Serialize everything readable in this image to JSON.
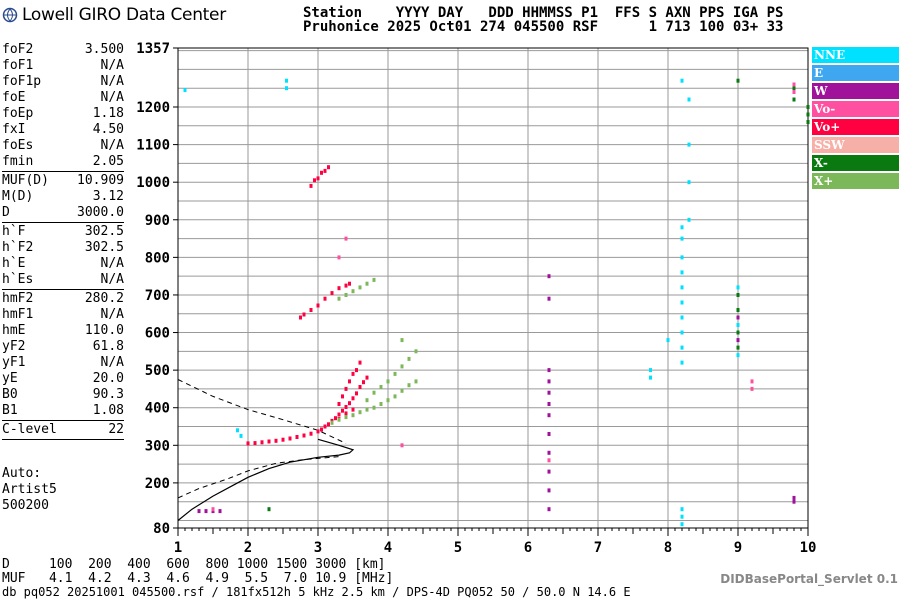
{
  "header": {
    "logo_text": "Lowell GIRO Data Center",
    "line1": "Station    YYYY DAY   DDD HHMMSS P1  FFS S AXN PPS IGA PS",
    "line2": "Pruhonice 2025 Oct01 274 045500 RSF      1 713 100 03+ 33"
  },
  "params": [
    {
      "k": "foF2",
      "v": "3.500"
    },
    {
      "k": "foF1",
      "v": "N/A"
    },
    {
      "k": "foF1p",
      "v": "N/A"
    },
    {
      "k": "foE",
      "v": "N/A"
    },
    {
      "k": "foEp",
      "v": "1.18"
    },
    {
      "k": "fxI",
      "v": "4.50"
    },
    {
      "k": "foEs",
      "v": "N/A"
    },
    {
      "k": "fmin",
      "v": "2.05"
    },
    {
      "sep": true
    },
    {
      "k": "MUF(D)",
      "v": "10.909"
    },
    {
      "k": "M(D)",
      "v": "3.12"
    },
    {
      "k": "D",
      "v": "3000.0"
    },
    {
      "sep": true
    },
    {
      "k": "h`F",
      "v": "302.5"
    },
    {
      "k": "h`F2",
      "v": "302.5"
    },
    {
      "k": "h`E",
      "v": "N/A"
    },
    {
      "k": "h`Es",
      "v": "N/A"
    },
    {
      "sep": true
    },
    {
      "k": "hmF2",
      "v": "280.2"
    },
    {
      "k": "hmF1",
      "v": "N/A"
    },
    {
      "k": "hmE",
      "v": "110.0"
    },
    {
      "k": "yF2",
      "v": "61.8"
    },
    {
      "k": "yF1",
      "v": "N/A"
    },
    {
      "k": "yE",
      "v": "20.0"
    },
    {
      "k": "B0",
      "v": "90.3"
    },
    {
      "k": "B1",
      "v": "1.08"
    },
    {
      "sep": true
    },
    {
      "k": "C-level",
      "v": "22"
    },
    {
      "sep": true
    }
  ],
  "auto": {
    "line1": "Auto:",
    "line2": "Artist5",
    "line3": "500200"
  },
  "legend": [
    {
      "label": "NNE",
      "color": "#00e0ff"
    },
    {
      "label": "E",
      "color": "#3fa6f0"
    },
    {
      "label": "W",
      "color": "#a0129a"
    },
    {
      "label": "Vo-",
      "color": "#ff4fa0"
    },
    {
      "label": "Vo+",
      "color": "#ff0040"
    },
    {
      "label": "SSW",
      "color": "#f7b0a8"
    },
    {
      "label": "X-",
      "color": "#0a7a10"
    },
    {
      "label": "X+",
      "color": "#7cb85a"
    }
  ],
  "dmuf": {
    "line1": "D     100  200  400  600  800 1000 1500 3000 [km]",
    "line2": "MUF   4.1  4.2  4.3  4.6  4.9  5.5  7.0 10.9 [MHz]"
  },
  "footer": "db pq052 20251001 045500.rsf / 181fx512h 5 kHz 2.5 km / DPS-4D PQ052 50 / 50.0 N 14.6 E",
  "servlet": "DIDBasePortal_Servlet 0.1",
  "chart_data": {
    "type": "scatter",
    "xlim": [
      1,
      10
    ],
    "ylim": [
      80,
      1357
    ],
    "xticks": [
      "1",
      "2",
      "3",
      "4",
      "5",
      "6",
      "7",
      "8",
      "9",
      "10"
    ],
    "yticks": [
      "80",
      "200",
      "300",
      "400",
      "500",
      "600",
      "700",
      "800",
      "900",
      "1000",
      "1100",
      "1200",
      "1357"
    ],
    "grid": true,
    "xlabel": "",
    "ylabel": "",
    "series": [
      {
        "name": "Vo+",
        "color": "#ff0040",
        "points": [
          [
            2.0,
            305
          ],
          [
            2.1,
            306
          ],
          [
            2.2,
            308
          ],
          [
            2.3,
            310
          ],
          [
            2.4,
            312
          ],
          [
            2.5,
            315
          ],
          [
            2.6,
            318
          ],
          [
            2.7,
            322
          ],
          [
            2.8,
            326
          ],
          [
            2.9,
            331
          ],
          [
            3.0,
            337
          ],
          [
            3.05,
            342
          ],
          [
            3.1,
            350
          ],
          [
            3.15,
            356
          ],
          [
            3.2,
            365
          ],
          [
            3.25,
            372
          ],
          [
            3.3,
            382
          ],
          [
            3.35,
            392
          ],
          [
            3.4,
            402
          ],
          [
            3.45,
            412
          ],
          [
            3.5,
            425
          ],
          [
            3.55,
            438
          ],
          [
            3.6,
            455
          ],
          [
            3.65,
            468
          ],
          [
            3.7,
            480
          ],
          [
            3.3,
            410
          ],
          [
            3.35,
            430
          ],
          [
            3.4,
            450
          ],
          [
            3.45,
            470
          ],
          [
            3.5,
            490
          ],
          [
            3.55,
            500
          ],
          [
            3.6,
            520
          ],
          [
            3.5,
            395
          ],
          [
            3.4,
            385
          ],
          [
            3.3,
            370
          ],
          [
            2.75,
            640
          ],
          [
            2.8,
            648
          ],
          [
            2.9,
            660
          ],
          [
            3.0,
            672
          ],
          [
            3.1,
            690
          ],
          [
            3.2,
            705
          ],
          [
            3.3,
            718
          ],
          [
            3.4,
            725
          ],
          [
            3.45,
            730
          ],
          [
            2.9,
            990
          ],
          [
            2.95,
            1005
          ],
          [
            3.0,
            1010
          ],
          [
            3.05,
            1025
          ],
          [
            3.1,
            1030
          ],
          [
            3.15,
            1040
          ]
        ]
      },
      {
        "name": "X+",
        "color": "#7cb85a",
        "points": [
          [
            3.2,
            360
          ],
          [
            3.3,
            368
          ],
          [
            3.4,
            375
          ],
          [
            3.5,
            380
          ],
          [
            3.6,
            388
          ],
          [
            3.7,
            395
          ],
          [
            3.8,
            400
          ],
          [
            3.9,
            410
          ],
          [
            4.0,
            420
          ],
          [
            4.1,
            430
          ],
          [
            4.2,
            445
          ],
          [
            4.3,
            460
          ],
          [
            4.4,
            470
          ],
          [
            3.7,
            420
          ],
          [
            3.8,
            440
          ],
          [
            3.9,
            455
          ],
          [
            4.0,
            470
          ],
          [
            4.1,
            490
          ],
          [
            4.2,
            510
          ],
          [
            4.3,
            530
          ],
          [
            4.4,
            550
          ],
          [
            4.2,
            580
          ],
          [
            3.3,
            690
          ],
          [
            3.4,
            700
          ],
          [
            3.5,
            710
          ],
          [
            3.6,
            720
          ],
          [
            3.7,
            730
          ],
          [
            3.8,
            740
          ]
        ]
      },
      {
        "name": "NNE",
        "color": "#00e0ff",
        "points": [
          [
            1.85,
            340
          ],
          [
            1.9,
            325
          ],
          [
            2.55,
            1250
          ],
          [
            2.55,
            1270
          ],
          [
            1.1,
            1245
          ],
          [
            8.2,
            520
          ],
          [
            8.2,
            560
          ],
          [
            8.2,
            600
          ],
          [
            8.2,
            640
          ],
          [
            8.2,
            680
          ],
          [
            8.2,
            720
          ],
          [
            8.2,
            760
          ],
          [
            8.2,
            800
          ],
          [
            8.2,
            850
          ],
          [
            8.2,
            880
          ],
          [
            8.3,
            900
          ],
          [
            8.3,
            1000
          ],
          [
            8.3,
            1100
          ],
          [
            8.3,
            1220
          ],
          [
            8.2,
            1270
          ],
          [
            8.2,
            90
          ],
          [
            8.2,
            110
          ],
          [
            8.2,
            130
          ],
          [
            7.75,
            500
          ],
          [
            7.75,
            480
          ],
          [
            9.0,
            720
          ],
          [
            9.0,
            660
          ],
          [
            9.0,
            620
          ],
          [
            9.0,
            580
          ],
          [
            9.0,
            540
          ],
          [
            8.0,
            580
          ]
        ]
      },
      {
        "name": "W",
        "color": "#a0129a",
        "points": [
          [
            6.3,
            500
          ],
          [
            6.3,
            470
          ],
          [
            6.3,
            440
          ],
          [
            6.3,
            410
          ],
          [
            6.3,
            380
          ],
          [
            6.3,
            330
          ],
          [
            6.3,
            280
          ],
          [
            6.3,
            230
          ],
          [
            6.3,
            180
          ],
          [
            6.3,
            130
          ],
          [
            6.3,
            690
          ],
          [
            6.3,
            750
          ],
          [
            9.0,
            700
          ],
          [
            9.0,
            640
          ],
          [
            9.0,
            580
          ],
          [
            9.8,
            160
          ],
          [
            9.8,
            150
          ],
          [
            1.3,
            125
          ],
          [
            1.4,
            125
          ],
          [
            1.5,
            125
          ],
          [
            1.6,
            125
          ]
        ]
      },
      {
        "name": "X-",
        "color": "#0a7a10",
        "points": [
          [
            9.0,
            700
          ],
          [
            9.0,
            660
          ],
          [
            9.0,
            600
          ],
          [
            9.0,
            560
          ],
          [
            9.8,
            1220
          ],
          [
            9.8,
            1250
          ],
          [
            10.0,
            1180
          ],
          [
            10.0,
            1200
          ],
          [
            10.0,
            1160
          ],
          [
            9.0,
            1270
          ],
          [
            2.3,
            130
          ]
        ]
      },
      {
        "name": "Vo-",
        "color": "#ff4fa0",
        "points": [
          [
            9.8,
            1260
          ],
          [
            9.8,
            1240
          ],
          [
            9.2,
            470
          ],
          [
            9.2,
            450
          ],
          [
            3.3,
            800
          ],
          [
            3.4,
            850
          ],
          [
            4.2,
            300
          ],
          [
            1.5,
            130
          ],
          [
            6.3,
            260
          ]
        ]
      }
    ]
  }
}
